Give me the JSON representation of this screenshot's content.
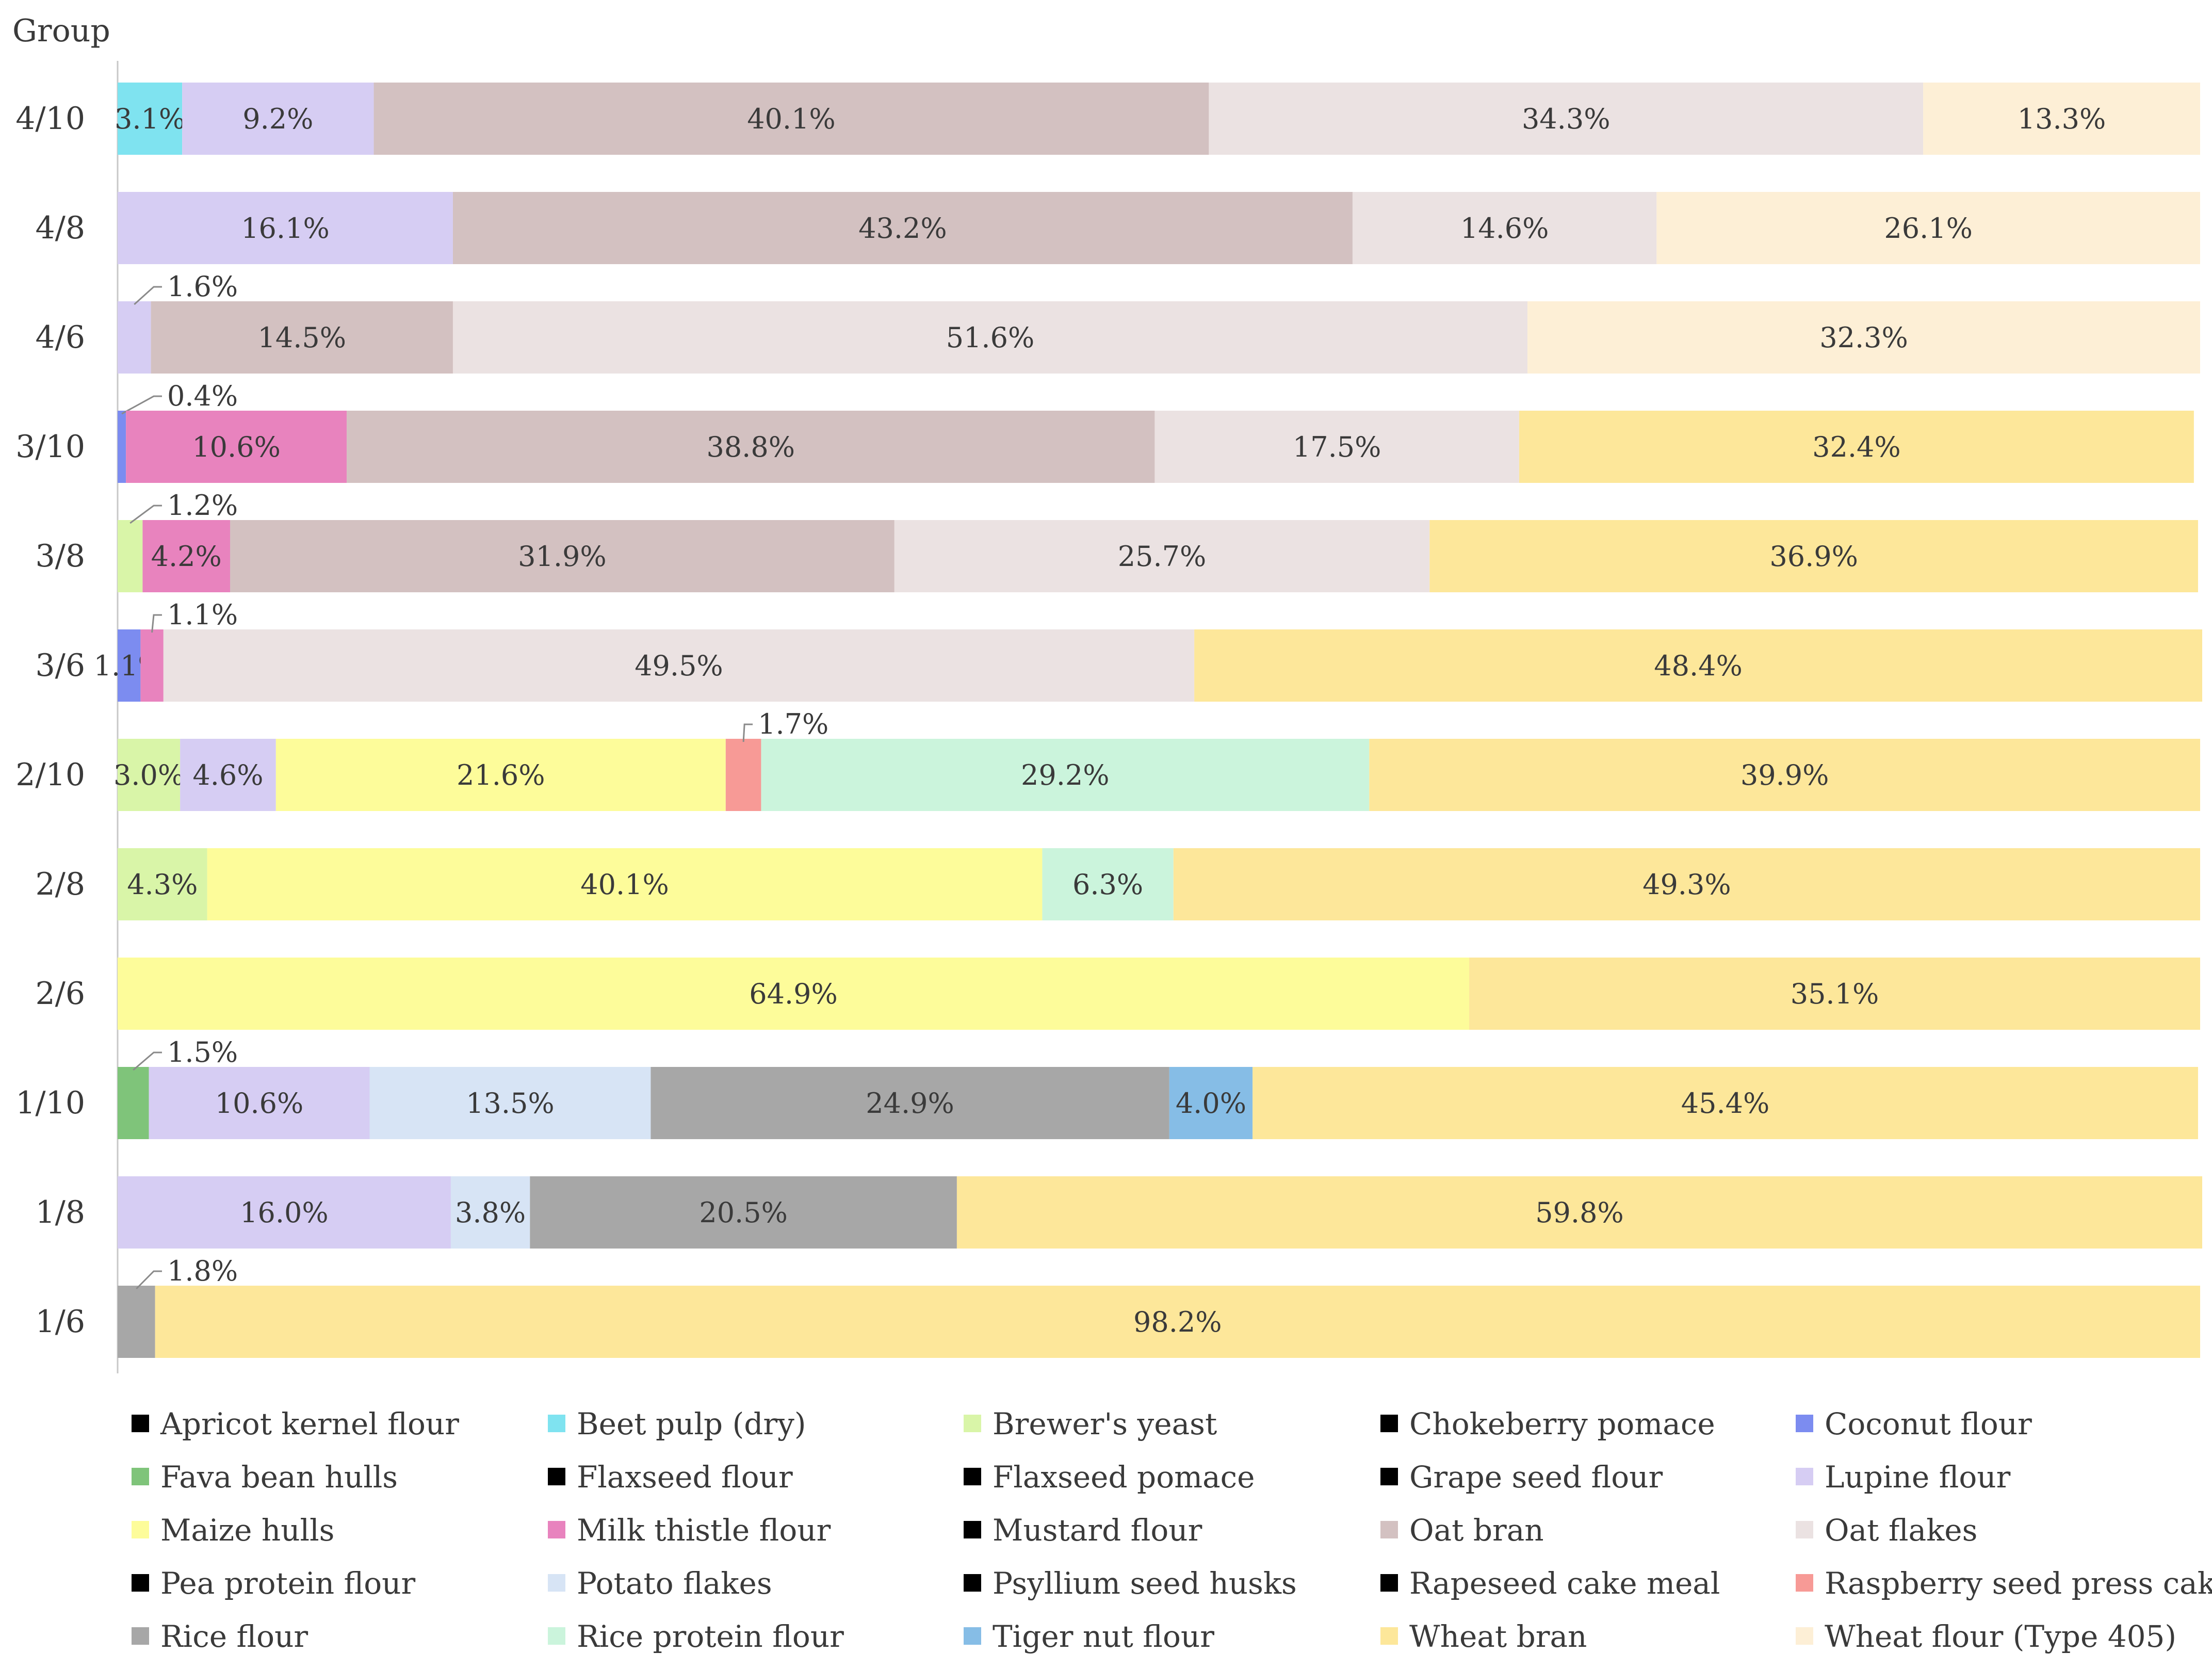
{
  "chart_data": {
    "type": "bar",
    "orientation": "horizontal",
    "stacked": true,
    "ylabel": "Group",
    "categories": [
      "4/10",
      "4/8",
      "4/6",
      "3/10",
      "3/8",
      "3/6",
      "2/10",
      "2/8",
      "2/6",
      "1/10",
      "1/8",
      "1/6"
    ],
    "xlim": [
      0,
      100
    ],
    "grid": false,
    "legend_position": "bottom",
    "series": [
      {
        "name": "Apricot kernel flour",
        "color": "#000000",
        "values": [
          0,
          0,
          0,
          0,
          0,
          0,
          0,
          0,
          0,
          0,
          0,
          0
        ]
      },
      {
        "name": "Beet pulp (dry)",
        "color": "#7fe3f0",
        "values": [
          3.1,
          0,
          0,
          0,
          0,
          0,
          0,
          0,
          0,
          0,
          0,
          0
        ]
      },
      {
        "name": "Brewer's yeast",
        "color": "#d9f5a8",
        "values": [
          0,
          0,
          0,
          0,
          1.2,
          0,
          3.0,
          4.3,
          0,
          0,
          0,
          0
        ]
      },
      {
        "name": "Chokeberry pomace",
        "color": "#000000",
        "values": [
          0,
          0,
          0,
          0,
          0,
          0,
          0,
          0,
          0,
          0,
          0,
          0
        ]
      },
      {
        "name": "Coconut flour",
        "color": "#7c8cf0",
        "values": [
          0,
          0,
          0,
          0.4,
          0,
          1.1,
          0,
          0,
          0,
          0,
          0,
          0
        ]
      },
      {
        "name": "Fava bean hulls",
        "color": "#7fc47a",
        "values": [
          0,
          0,
          0,
          0,
          0,
          0,
          0,
          0,
          0,
          1.5,
          0,
          0
        ]
      },
      {
        "name": "Flaxseed flour",
        "color": "#000000",
        "values": [
          0,
          0,
          0,
          0,
          0,
          0,
          0,
          0,
          0,
          0,
          0,
          0
        ]
      },
      {
        "name": "Flaxseed pomace",
        "color": "#000000",
        "values": [
          0,
          0,
          0,
          0,
          0,
          0,
          0,
          0,
          0,
          0,
          0,
          0
        ]
      },
      {
        "name": "Grape seed flour",
        "color": "#000000",
        "values": [
          0,
          0,
          0,
          0,
          0,
          0,
          0,
          0,
          0,
          0,
          0,
          0
        ]
      },
      {
        "name": "Lupine flour",
        "color": "#d6cdf3",
        "values": [
          9.2,
          16.1,
          1.6,
          0,
          0,
          0,
          4.6,
          0,
          0,
          10.6,
          16.0,
          0
        ]
      },
      {
        "name": "Maize hulls",
        "color": "#fdfc9a",
        "values": [
          0,
          0,
          0,
          0,
          0,
          0,
          21.6,
          40.1,
          64.9,
          0,
          0,
          0
        ]
      },
      {
        "name": "Milk thistle flour",
        "color": "#e883be",
        "values": [
          0,
          0,
          0,
          10.6,
          4.2,
          1.1,
          0,
          0,
          0,
          0,
          0,
          0
        ]
      },
      {
        "name": "Mustard flour",
        "color": "#000000",
        "values": [
          0,
          0,
          0,
          0,
          0,
          0,
          0,
          0,
          0,
          0,
          0,
          0
        ]
      },
      {
        "name": "Oat bran",
        "color": "#d3c1c1",
        "values": [
          40.1,
          43.2,
          14.5,
          38.8,
          31.9,
          0,
          0,
          0,
          0,
          0,
          0,
          0
        ]
      },
      {
        "name": "Oat flakes",
        "color": "#ebe2e2",
        "values": [
          34.3,
          14.6,
          51.6,
          17.5,
          25.7,
          49.5,
          0,
          0,
          0,
          0,
          0,
          0
        ]
      },
      {
        "name": "Pea protein flour",
        "color": "#000000",
        "values": [
          0,
          0,
          0,
          0,
          0,
          0,
          0,
          0,
          0,
          0,
          0,
          0
        ]
      },
      {
        "name": "Potato flakes",
        "color": "#d7e4f5",
        "values": [
          0,
          0,
          0,
          0,
          0,
          0,
          0,
          0,
          0,
          13.5,
          3.8,
          0
        ]
      },
      {
        "name": "Psyllium seed husks",
        "color": "#000000",
        "values": [
          0,
          0,
          0,
          0,
          0,
          0,
          0,
          0,
          0,
          0,
          0,
          0
        ]
      },
      {
        "name": "Rapeseed cake meal",
        "color": "#000000",
        "values": [
          0,
          0,
          0,
          0,
          0,
          0,
          0,
          0,
          0,
          0,
          0,
          0
        ]
      },
      {
        "name": "Raspberry seed press cake",
        "color": "#f79a96",
        "values": [
          0,
          0,
          0,
          0,
          0,
          0,
          1.7,
          0,
          0,
          0,
          0,
          0
        ]
      },
      {
        "name": "Rice flour",
        "color": "#a7a7a7",
        "values": [
          0,
          0,
          0,
          0,
          0,
          0,
          0,
          0,
          0,
          24.9,
          20.5,
          1.8
        ]
      },
      {
        "name": "Rice protein flour",
        "color": "#cbf4dc",
        "values": [
          0,
          0,
          0,
          0,
          0,
          0,
          29.2,
          6.3,
          0,
          0,
          0,
          0
        ]
      },
      {
        "name": "Tiger nut flour",
        "color": "#86bde6",
        "values": [
          0,
          0,
          0,
          0,
          0,
          0,
          0,
          0,
          0,
          4.0,
          0,
          0
        ]
      },
      {
        "name": "Wheat bran",
        "color": "#fde79a",
        "values": [
          0,
          0,
          0,
          32.4,
          36.9,
          48.4,
          39.9,
          49.3,
          35.1,
          45.4,
          59.8,
          98.2
        ]
      },
      {
        "name": "Wheat flour (Type 405)",
        "color": "#fdefd6",
        "values": [
          13.3,
          26.1,
          32.3,
          0,
          0,
          0,
          0,
          0,
          0,
          0,
          0,
          0
        ]
      }
    ],
    "value_suffix": "%",
    "callout_labels": [
      {
        "category": "4/6",
        "series": "Lupine flour",
        "text": "1.6%"
      },
      {
        "category": "3/10",
        "series": "Coconut flour",
        "text": "0.4%"
      },
      {
        "category": "3/8",
        "series": "Brewer's yeast",
        "text": "1.2%"
      },
      {
        "category": "3/6",
        "series": "Milk thistle flour",
        "text": "1.1%"
      },
      {
        "category": "2/10",
        "series": "Raspberry seed press cake",
        "text": "1.7%"
      },
      {
        "category": "1/10",
        "series": "Fava bean hulls",
        "text": "1.5%"
      },
      {
        "category": "1/6",
        "series": "Rice flour",
        "text": "1.8%"
      }
    ]
  }
}
